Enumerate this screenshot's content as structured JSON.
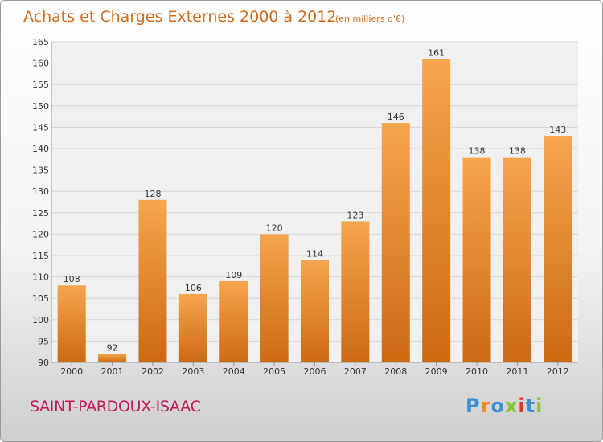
{
  "title": "Achats et Charges Externes 2000 à 2012",
  "subtitle": "(en milliers d'€)",
  "commune": "SAINT-PARDOUX-ISAAC",
  "logo": "Proxiti",
  "colors": {
    "bar_light": "#f6a54e",
    "bar_dark": "#cc6a12",
    "title": "#d06a1a",
    "commune": "#c2185b"
  },
  "chart_data": {
    "type": "bar",
    "title": "Achats et Charges Externes 2000 à 2012",
    "subtitle": "(en milliers d'€)",
    "categories": [
      "2000",
      "2001",
      "2002",
      "2003",
      "2004",
      "2005",
      "2006",
      "2007",
      "2008",
      "2009",
      "2010",
      "2011",
      "2012"
    ],
    "values": [
      108,
      92,
      128,
      106,
      109,
      120,
      114,
      123,
      146,
      161,
      138,
      138,
      143
    ],
    "ylim": [
      90,
      165
    ],
    "yticks": [
      90,
      95,
      100,
      105,
      110,
      115,
      120,
      125,
      130,
      135,
      140,
      145,
      150,
      155,
      160,
      165
    ],
    "grid": true,
    "legend": "none"
  }
}
